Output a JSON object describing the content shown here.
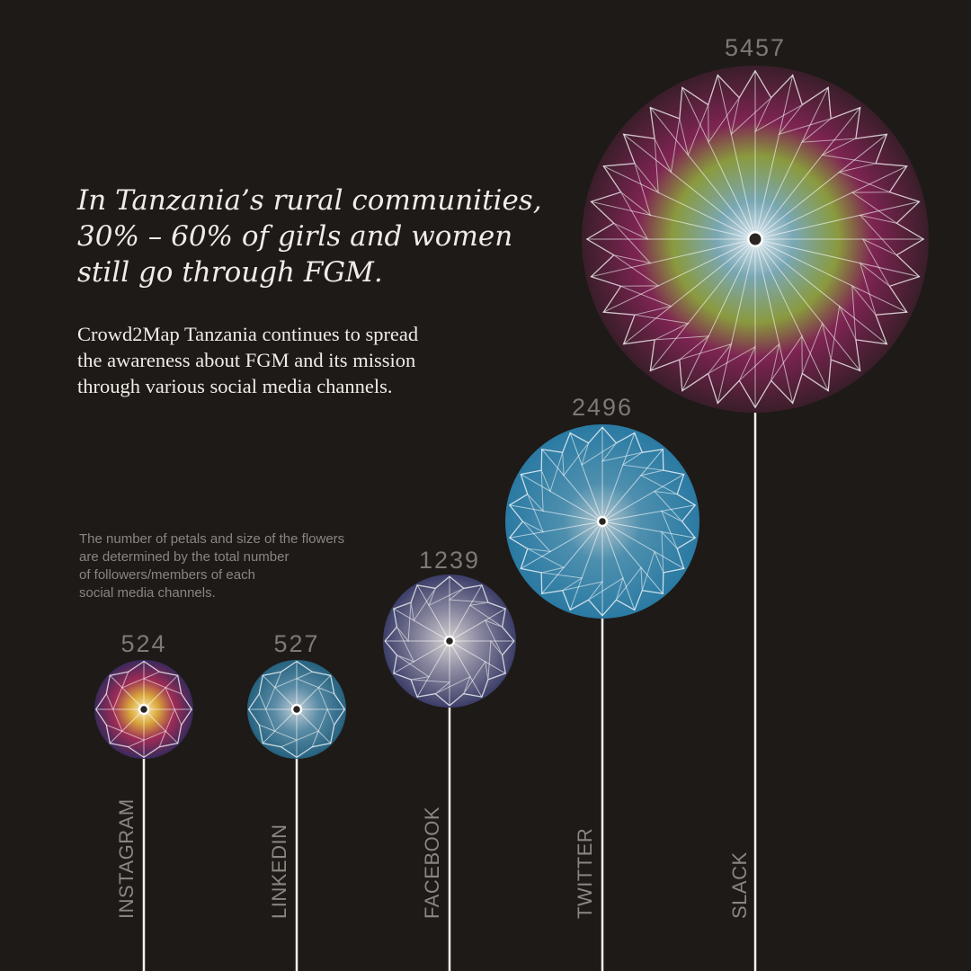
{
  "headline": {
    "line1": "In Tanzania’s rural communities,",
    "line2": "30% – 60% of girls and women",
    "line3": "still go through FGM."
  },
  "subtext": {
    "line1": "Crowd2Map Tanzania continues to spread",
    "line2": "the awareness about FGM and its mission",
    "line3": "through various social media channels."
  },
  "note": {
    "line1": "The number of petals and size of the flowers",
    "line2": "are determined by the total number",
    "line3": "of followers/members of each",
    "line4": "social media channels."
  },
  "chart_data": {
    "type": "bar",
    "encoding": "flower size and petal count",
    "categories": [
      "INSTAGRAM",
      "LINKEDIN",
      "FACEBOOK",
      "TWITTER",
      "SLACK"
    ],
    "values": [
      524,
      527,
      1239,
      2496,
      5457
    ],
    "colors": [
      "#7a2a6a",
      "#2a6f8f",
      "#4a4f7a",
      "#2e7fa8",
      "#8a2255"
    ]
  }
}
